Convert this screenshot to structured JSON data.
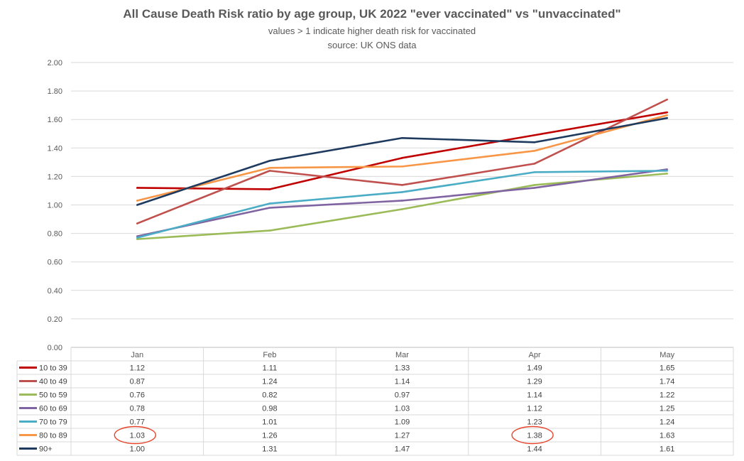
{
  "chart_data": {
    "type": "line",
    "title": "All Cause Death Risk ratio by age group, UK 2022 \"ever vaccinated\" vs \"unvaccinated\"",
    "subtitle_lines": [
      "values > 1 indicate higher death risk for vaccinated",
      "source:  UK ONS data"
    ],
    "categories": [
      "Jan",
      "Feb",
      "Mar",
      "Apr",
      "May"
    ],
    "ylim": [
      0,
      2
    ],
    "yticks": [
      "0.00",
      "0.20",
      "0.40",
      "0.60",
      "0.80",
      "1.00",
      "1.20",
      "1.40",
      "1.60",
      "1.80",
      "2.00"
    ],
    "grid": true,
    "legend": "data-table-below",
    "series": [
      {
        "name": "10 to 39",
        "color": "#c00000",
        "values": [
          1.12,
          1.11,
          1.33,
          1.49,
          1.65
        ]
      },
      {
        "name": "40 to 49",
        "color": "#c0504d",
        "values": [
          0.87,
          1.24,
          1.14,
          1.29,
          1.74
        ]
      },
      {
        "name": "50 to 59",
        "color": "#9bbb59",
        "values": [
          0.76,
          0.82,
          0.97,
          1.14,
          1.22
        ]
      },
      {
        "name": "60 to 69",
        "color": "#8064a2",
        "values": [
          0.78,
          0.98,
          1.03,
          1.12,
          1.25
        ]
      },
      {
        "name": "70 to 79",
        "color": "#4bacc6",
        "values": [
          0.77,
          1.01,
          1.09,
          1.23,
          1.24
        ]
      },
      {
        "name": "80 to 89",
        "color": "#f79646",
        "values": [
          1.03,
          1.26,
          1.27,
          1.38,
          1.63
        ]
      },
      {
        "name": "90+",
        "color": "#1f3a5f",
        "values": [
          1.0,
          1.31,
          1.47,
          1.44,
          1.61
        ]
      }
    ],
    "table_values": [
      [
        "1.12",
        "1.11",
        "1.33",
        "1.49",
        "1.65"
      ],
      [
        "0.87",
        "1.24",
        "1.14",
        "1.29",
        "1.74"
      ],
      [
        "0.76",
        "0.82",
        "0.97",
        "1.14",
        "1.22"
      ],
      [
        "0.78",
        "0.98",
        "1.03",
        "1.12",
        "1.25"
      ],
      [
        "0.77",
        "1.01",
        "1.09",
        "1.23",
        "1.24"
      ],
      [
        "1.03",
        "1.26",
        "1.27",
        "1.38",
        "1.63"
      ],
      [
        "1.00",
        "1.31",
        "1.47",
        "1.44",
        "1.61"
      ]
    ],
    "annotations": [
      {
        "type": "ellipse",
        "color": "#e8442c",
        "series": "80 to 89",
        "category": "Jan"
      },
      {
        "type": "ellipse",
        "color": "#e8442c",
        "series": "80 to 89",
        "category": "Apr"
      }
    ]
  }
}
